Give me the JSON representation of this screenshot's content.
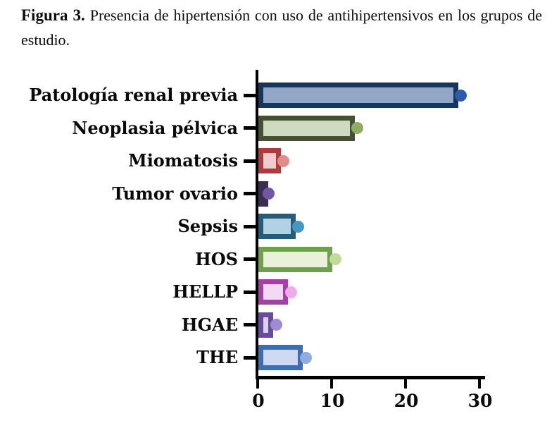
{
  "figure": {
    "label": "Figura 3.",
    "caption": "Presencia de hipertensión con uso de antihipertensivos en los grupos de estudio."
  },
  "chart_data": {
    "type": "bar",
    "orientation": "horizontal",
    "title": "",
    "xlabel": "",
    "ylabel": "",
    "categories": [
      "Patología renal previa",
      "Neoplasia pélvica",
      "Miomatosis",
      "Tumor ovario",
      "Sepsis",
      "HOS",
      "HELLP",
      "HGAE",
      "THE"
    ],
    "values": [
      27,
      13,
      3,
      1,
      5,
      10,
      4,
      2,
      6
    ],
    "x_ticks": [
      "0",
      "10",
      "20",
      "30"
    ],
    "x_tick_values": [
      0,
      10,
      20,
      30
    ],
    "xlim": [
      0,
      31
    ],
    "grid": false,
    "legend": false,
    "marker": "dot-at-bar-end",
    "axis_color": "#000000",
    "colors": [
      {
        "border": "#16365E",
        "fill": "#92A7C8",
        "dot": "#2B5CA9"
      },
      {
        "border": "#44502F",
        "fill": "#CFDAC1",
        "dot": "#92AB63"
      },
      {
        "border": "#AF3B3B",
        "fill": "#F1CBD0",
        "dot": "#DE8D8D"
      },
      {
        "border": "#3A2D51",
        "fill": "#CFC6E2",
        "dot": "#7157A4"
      },
      {
        "border": "#235D7A",
        "fill": "#B1D2E2",
        "dot": "#4598C0"
      },
      {
        "border": "#6FA04A",
        "fill": "#E9F1DA",
        "dot": "#C0DD97"
      },
      {
        "border": "#A63FA8",
        "fill": "#F4D9F4",
        "dot": "#EBACE7"
      },
      {
        "border": "#6A4AA0",
        "fill": "#DBD2EE",
        "dot": "#9F8BD0"
      },
      {
        "border": "#3D6DB5",
        "fill": "#CEDAF2",
        "dot": "#8FACE0"
      }
    ]
  }
}
